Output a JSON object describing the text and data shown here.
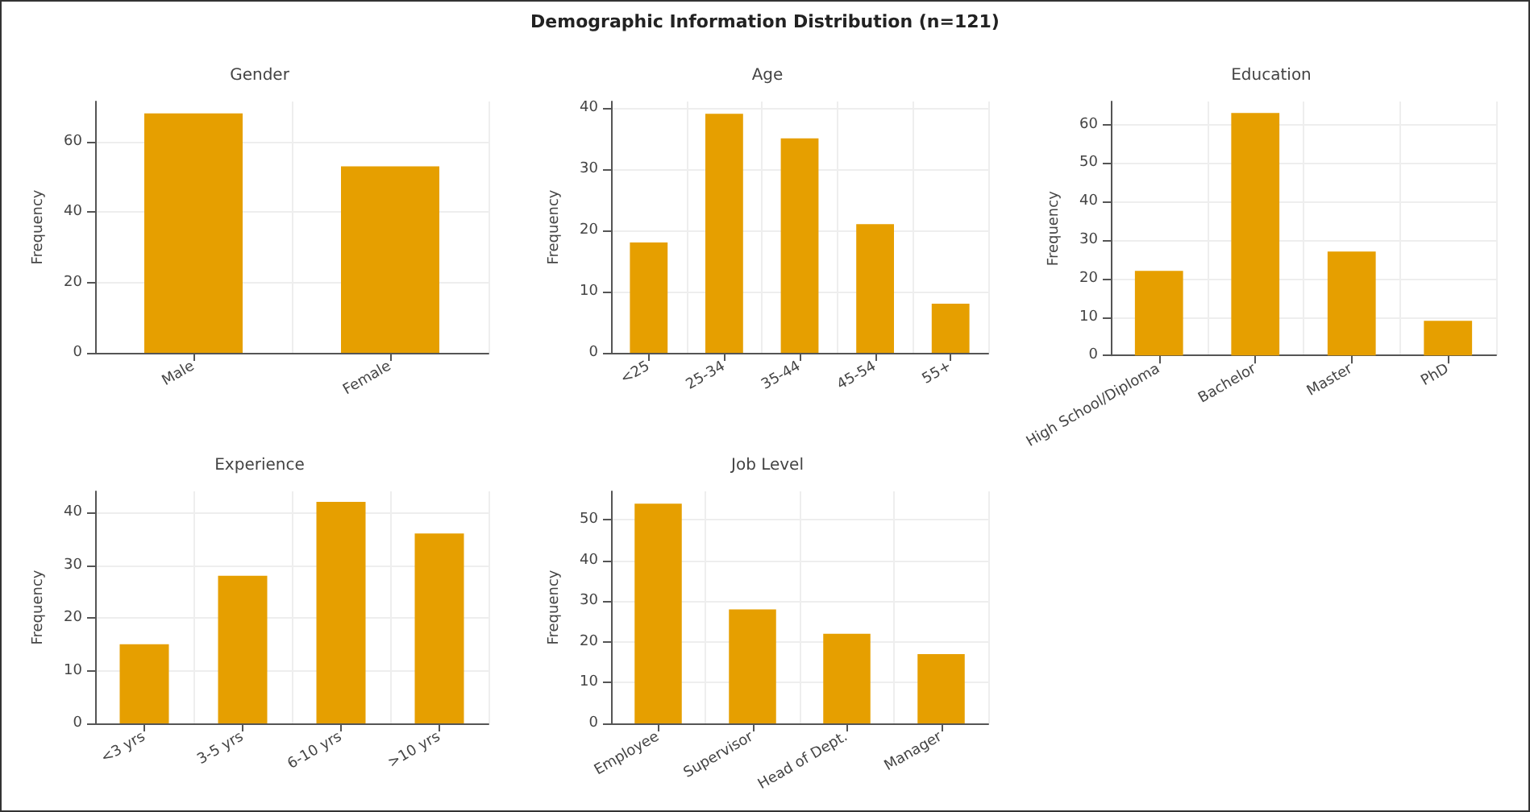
{
  "chart_data": [
    {
      "type": "other",
      "title": "Demographic Information Distribution (n=121)"
    },
    {
      "type": "bar",
      "title": "Gender",
      "ylabel": "Frequency",
      "categories": [
        "Male",
        "Female"
      ],
      "values": [
        68,
        53
      ],
      "color": "#e69f00",
      "ylim": [
        0,
        71.4
      ],
      "yticks": [
        0,
        20,
        40,
        60
      ],
      "grid": true
    },
    {
      "type": "bar",
      "title": "Age",
      "ylabel": "Frequency",
      "categories": [
        "<25",
        "25-34",
        "35-44",
        "45-54",
        "55+"
      ],
      "values": [
        18,
        39,
        35,
        21,
        8
      ],
      "color": "#e69f00",
      "ylim": [
        0,
        41
      ],
      "yticks": [
        0,
        10,
        20,
        30,
        40
      ],
      "grid": true
    },
    {
      "type": "bar",
      "title": "Education",
      "ylabel": "Frequency",
      "categories": [
        "High School/Diploma",
        "Bachelor",
        "Master",
        "PhD"
      ],
      "values": [
        22,
        63,
        27,
        9
      ],
      "color": "#e69f00",
      "ylim": [
        0,
        66
      ],
      "yticks": [
        0,
        10,
        20,
        30,
        40,
        50,
        60
      ],
      "grid": true
    },
    {
      "type": "bar",
      "title": "Experience",
      "ylabel": "Frequency",
      "categories": [
        "<3 yrs",
        "3-5 yrs",
        "6-10 yrs",
        ">10 yrs"
      ],
      "values": [
        15,
        28,
        42,
        36
      ],
      "color": "#e69f00",
      "ylim": [
        0,
        44
      ],
      "yticks": [
        0,
        10,
        20,
        30,
        40
      ],
      "grid": true
    },
    {
      "type": "bar",
      "title": "Job Level",
      "ylabel": "Frequency",
      "categories": [
        "Employee",
        "Supervisor",
        "Head of Dept.",
        "Manager"
      ],
      "values": [
        54,
        28,
        22,
        17
      ],
      "color": "#e69f00",
      "ylim": [
        0,
        57
      ],
      "yticks": [
        0,
        10,
        20,
        30,
        40,
        50
      ],
      "grid": true
    }
  ]
}
